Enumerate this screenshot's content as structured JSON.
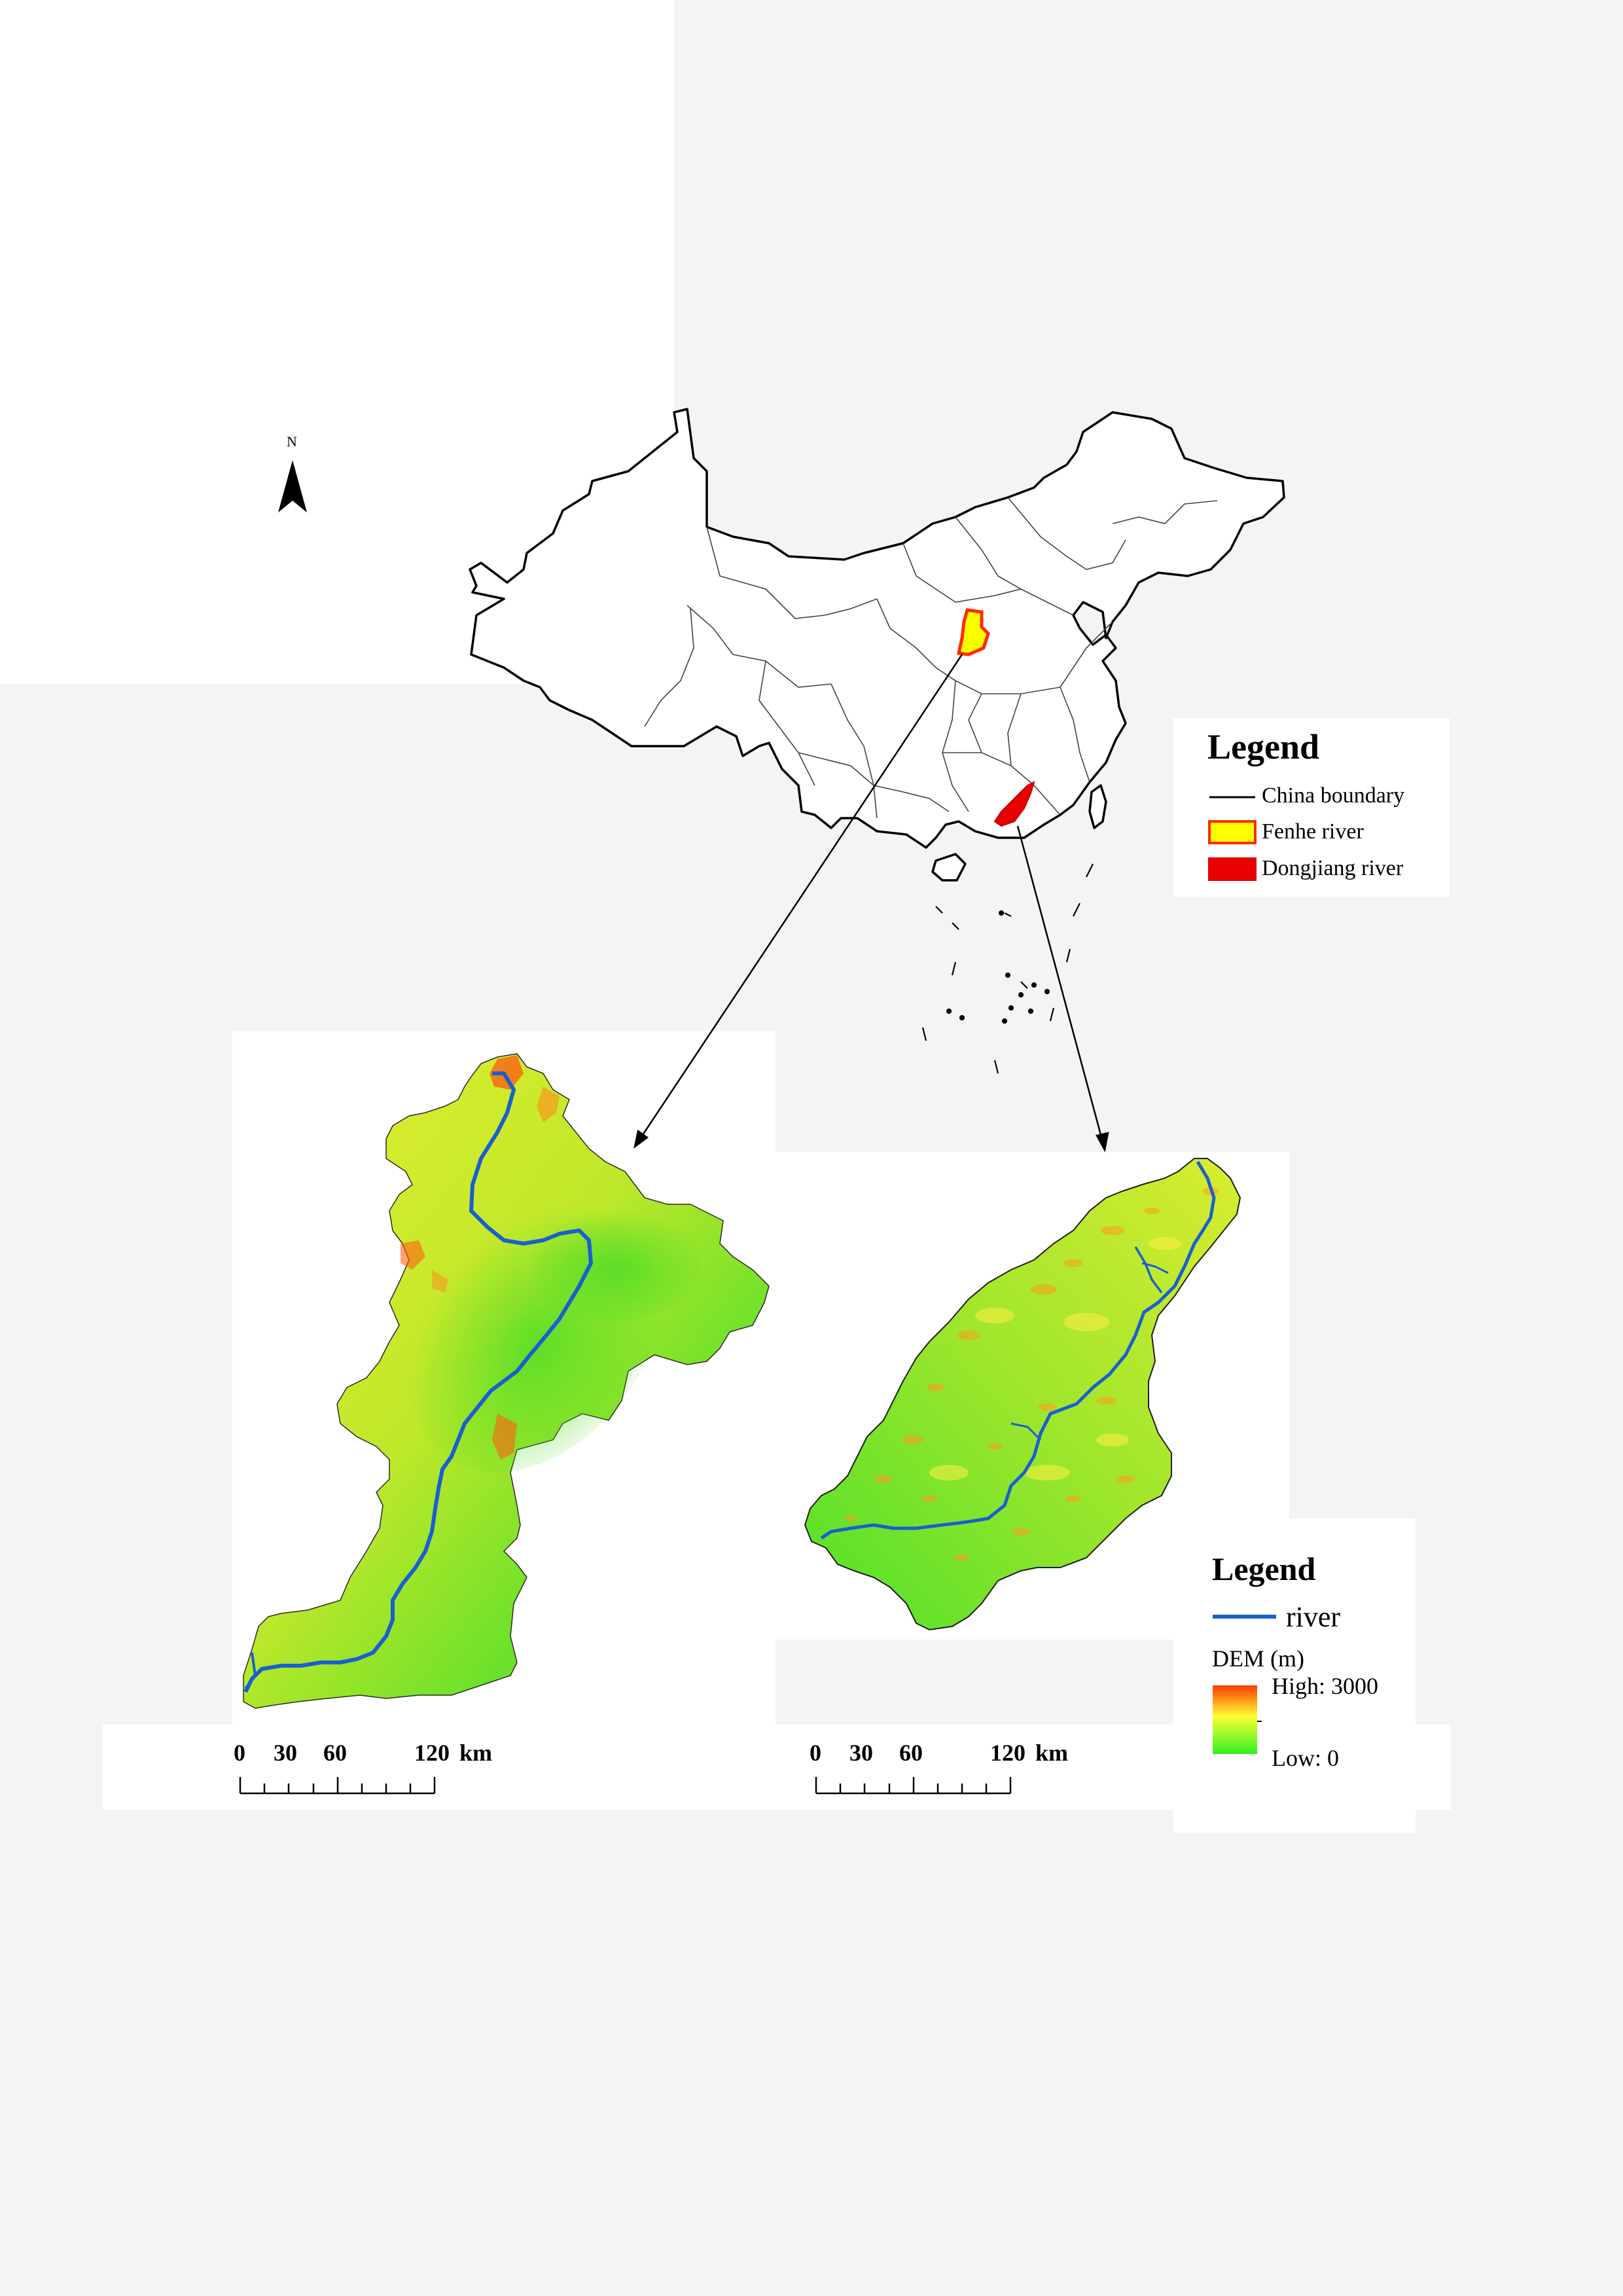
{
  "north_arrow": {
    "label": "N",
    "icon": "north-arrow-icon"
  },
  "main_legend": {
    "title": "Legend",
    "items": [
      {
        "label": "China boundary",
        "symbol": "black-line",
        "color": "#000000"
      },
      {
        "label": "Fenhe river",
        "symbol": "yellow-box-red-outline",
        "fill": "#ffff00",
        "stroke": "#ff2a00"
      },
      {
        "label": "Dongjiang river",
        "symbol": "red-box",
        "fill": "#e60000"
      }
    ]
  },
  "dem_legend": {
    "title": "Legend",
    "river_label": "river",
    "river_color": "#1a5fd0",
    "dem_title": "DEM (m)",
    "high_label": "High: 3000",
    "low_label": "Low: 0",
    "ramp_colors": [
      "#ff3a00",
      "#ffff33",
      "#33ee22"
    ]
  },
  "scale_bar_fenhe": {
    "ticks": [
      "0",
      "30",
      "60",
      "120"
    ],
    "unit": "km"
  },
  "scale_bar_dongjiang": {
    "ticks": [
      "0",
      "30",
      "60",
      "120"
    ],
    "unit": "km"
  },
  "colors": {
    "page_background": "#f4f4f4",
    "panel": "#ffffff",
    "dem_low": "#33dd22",
    "dem_mid": "#ddee33",
    "dem_high": "#ff3a00",
    "river": "#1a5fd0"
  }
}
